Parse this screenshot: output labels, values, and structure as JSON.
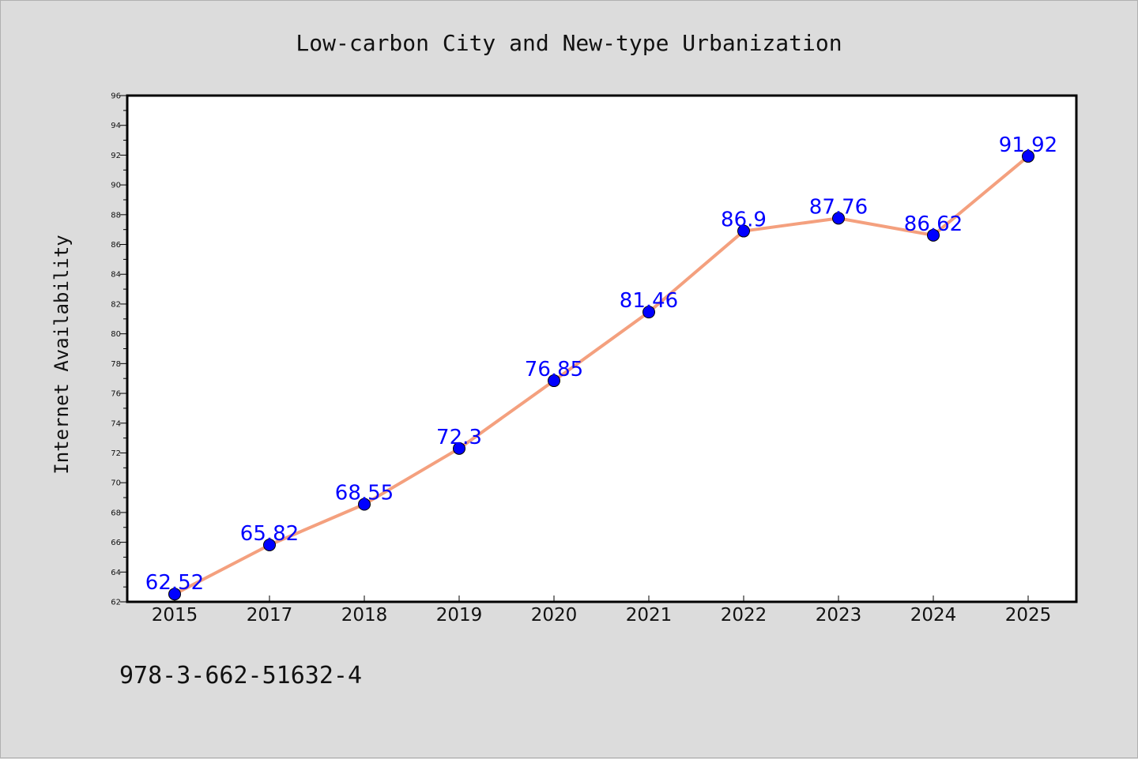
{
  "note": "978-3-662-51632-4",
  "colors": {
    "background": "#dcdcdc",
    "plot_background": "#ffffff",
    "line": "#f4a07e",
    "marker": "#0000ff",
    "data_label": "#0000ff"
  },
  "chart_data": {
    "type": "line",
    "title": "Low-carbon City and New-type Urbanization",
    "xlabel": "",
    "ylabel": "Internet Availability",
    "categories": [
      "2015",
      "2017",
      "2018",
      "2019",
      "2020",
      "2021",
      "2022",
      "2023",
      "2024",
      "2025"
    ],
    "series": [
      {
        "values": [
          62.52,
          65.82,
          68.55,
          72.3,
          76.85,
          81.46,
          86.9,
          87.76,
          86.62,
          91.92
        ]
      }
    ],
    "data_labels": [
      "62.52",
      "65.82",
      "68.55",
      "72.3",
      "76.85",
      "81.46",
      "86.9",
      "87.76",
      "86.62",
      "91.92"
    ],
    "ylim": [
      62,
      96
    ],
    "yticks": [
      62,
      64,
      66,
      68,
      70,
      72,
      74,
      76,
      78,
      80,
      82,
      84,
      86,
      88,
      90,
      92,
      94,
      96
    ],
    "grid": false,
    "legend": "none"
  }
}
